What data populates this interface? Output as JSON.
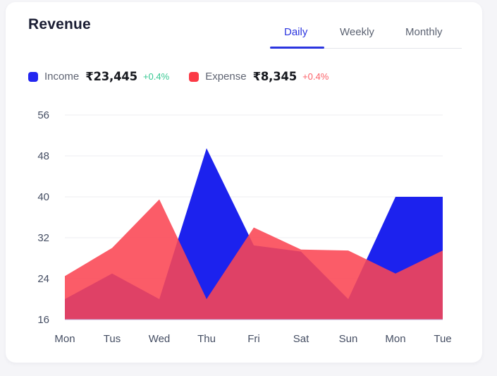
{
  "card": {
    "title": "Revenue",
    "tabs": [
      {
        "label": "Daily",
        "active": true
      },
      {
        "label": "Weekly",
        "active": false
      },
      {
        "label": "Monthly",
        "active": false
      }
    ],
    "legend": {
      "income": {
        "label": "Income",
        "amount": "₹23,445",
        "change": "+0.4%"
      },
      "expense": {
        "label": "Expense",
        "amount": "₹8,345",
        "change": "+0.4%"
      }
    }
  },
  "colors": {
    "income_fill": "#1C22EE",
    "expense_fill": "#FA4653",
    "expense_opacity": 0.88,
    "grid": "#EDEEF2",
    "baseline": "#B9ABDC",
    "accent_blue": "#2B35DF",
    "green_change": "#38C893",
    "red_change": "#FB6168"
  },
  "chart_data": {
    "type": "area",
    "categories": [
      "Mon",
      "Tus",
      "Wed",
      "Thu",
      "Fri",
      "Sat",
      "Sun",
      "Mon",
      "Tue"
    ],
    "series": [
      {
        "name": "Income",
        "color": "#1C22EE",
        "values": [
          20,
          25,
          20,
          49.5,
          30.5,
          29.3,
          20,
          40,
          40
        ]
      },
      {
        "name": "Expense",
        "color": "#FA4653",
        "values": [
          24.5,
          30,
          39.5,
          20,
          34,
          29.7,
          29.5,
          25,
          29.5
        ]
      }
    ],
    "title": "Revenue",
    "xlabel": "",
    "ylabel": "",
    "ylim": [
      16,
      56
    ],
    "y_ticks": [
      56,
      48,
      40,
      32,
      24,
      16
    ],
    "grid": "horizontal",
    "legend_position": "top-left"
  }
}
